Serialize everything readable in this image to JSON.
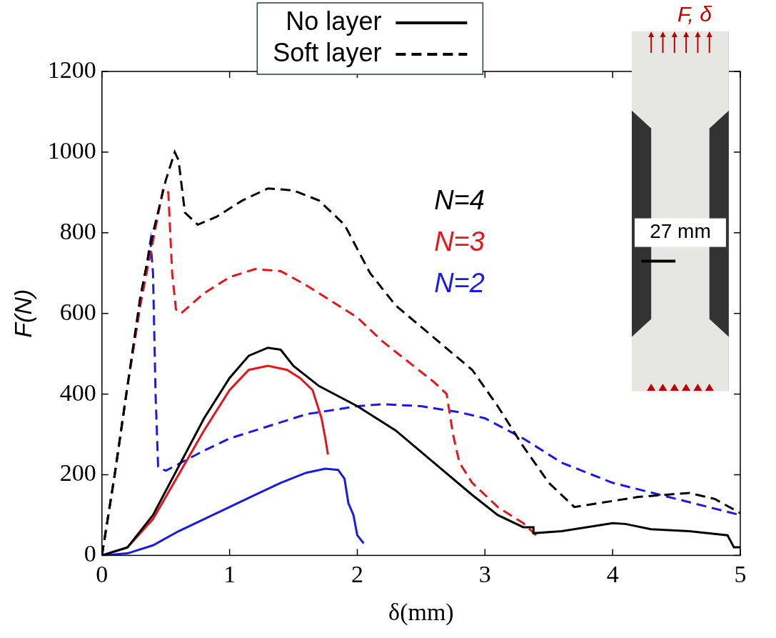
{
  "chart_data": {
    "type": "line",
    "x_label": "δ(mm)",
    "y_label": "F(N)",
    "xlim": [
      0,
      5
    ],
    "xticks": [
      0,
      1,
      2,
      3,
      4,
      5
    ],
    "ylim": [
      0,
      1200
    ],
    "yticks": [
      0,
      200,
      400,
      600,
      800,
      1000,
      1200
    ],
    "grid": false,
    "legend": "top",
    "annotations": [
      {
        "text": "N=4",
        "color": "#000000"
      },
      {
        "text": "N=3",
        "color": "#e8141b"
      },
      {
        "text": "N=2",
        "color": "#1a1ae6"
      }
    ],
    "inset_labels": [
      "F, δ",
      "27 mm"
    ],
    "series": [
      {
        "name": "No layer",
        "color": "#000000",
        "line_style": "solid",
        "x": [
          0,
          0.2,
          0.4,
          0.6,
          0.8,
          1.0,
          1.15,
          1.3,
          1.4,
          1.5,
          1.7,
          2.0,
          2.3,
          2.6,
          2.9,
          3.1,
          3.3,
          3.38,
          3.38,
          3.6,
          4.0,
          4.1,
          4.3,
          4.6,
          4.9,
          4.95,
          5.0
        ],
        "values": [
          0,
          20,
          100,
          220,
          340,
          440,
          495,
          515,
          510,
          470,
          420,
          370,
          310,
          230,
          150,
          100,
          70,
          70,
          55,
          60,
          80,
          78,
          65,
          60,
          50,
          20,
          20
        ]
      },
      {
        "name": "No layer",
        "color": "#e8141b",
        "line_style": "solid",
        "x": [
          0,
          0.2,
          0.4,
          0.6,
          0.8,
          1.0,
          1.15,
          1.3,
          1.45,
          1.55,
          1.65,
          1.72,
          1.75,
          1.77
        ],
        "values": [
          0,
          20,
          90,
          200,
          310,
          410,
          460,
          470,
          460,
          440,
          410,
          340,
          290,
          250
        ]
      },
      {
        "name": "No layer",
        "color": "#1a1ae6",
        "line_style": "solid",
        "x": [
          0,
          0.2,
          0.4,
          0.6,
          0.8,
          1.0,
          1.2,
          1.4,
          1.6,
          1.75,
          1.85,
          1.9,
          1.93,
          1.97,
          2.0,
          2.05
        ],
        "values": [
          0,
          5,
          25,
          60,
          90,
          120,
          150,
          180,
          205,
          215,
          212,
          190,
          130,
          100,
          50,
          30
        ]
      },
      {
        "name": "Soft layer",
        "color": "#000000",
        "line_style": "dashed",
        "x": [
          0,
          0.1,
          0.2,
          0.3,
          0.4,
          0.5,
          0.57,
          0.6,
          0.65,
          0.75,
          0.9,
          1.1,
          1.3,
          1.5,
          1.7,
          1.9,
          2.0,
          2.1,
          2.3,
          2.6,
          2.9,
          3.1,
          3.3,
          3.5,
          3.7,
          3.9,
          4.2,
          4.6,
          4.8,
          5.0
        ],
        "values": [
          0,
          200,
          420,
          640,
          800,
          930,
          1000,
          980,
          850,
          820,
          840,
          880,
          910,
          905,
          880,
          820,
          760,
          700,
          620,
          540,
          460,
          370,
          270,
          180,
          120,
          130,
          145,
          155,
          140,
          105
        ]
      },
      {
        "name": "Soft layer",
        "color": "#e8141b",
        "line_style": "dashed",
        "x": [
          0,
          0.1,
          0.2,
          0.3,
          0.4,
          0.48,
          0.52,
          0.55,
          0.58,
          0.62,
          0.8,
          1.0,
          1.2,
          1.4,
          1.6,
          1.8,
          2.0,
          2.2,
          2.4,
          2.6,
          2.7,
          2.75,
          2.8,
          2.9,
          3.1,
          3.3,
          3.4
        ],
        "values": [
          0,
          200,
          420,
          620,
          780,
          910,
          900,
          700,
          610,
          600,
          650,
          690,
          710,
          705,
          670,
          630,
          590,
          530,
          480,
          430,
          400,
          300,
          230,
          180,
          120,
          80,
          50
        ]
      },
      {
        "name": "Soft layer",
        "color": "#1a1ae6",
        "line_style": "dashed",
        "x": [
          0,
          0.1,
          0.2,
          0.3,
          0.38,
          0.4,
          0.42,
          0.44,
          0.5,
          0.8,
          1.0,
          1.3,
          1.6,
          2.0,
          2.2,
          2.5,
          2.8,
          3.0,
          3.3,
          3.6,
          4.0,
          4.5,
          5.0
        ],
        "values": [
          0,
          200,
          420,
          620,
          780,
          700,
          400,
          220,
          210,
          260,
          290,
          320,
          350,
          370,
          375,
          370,
          355,
          340,
          290,
          230,
          180,
          140,
          100
        ]
      }
    ]
  }
}
